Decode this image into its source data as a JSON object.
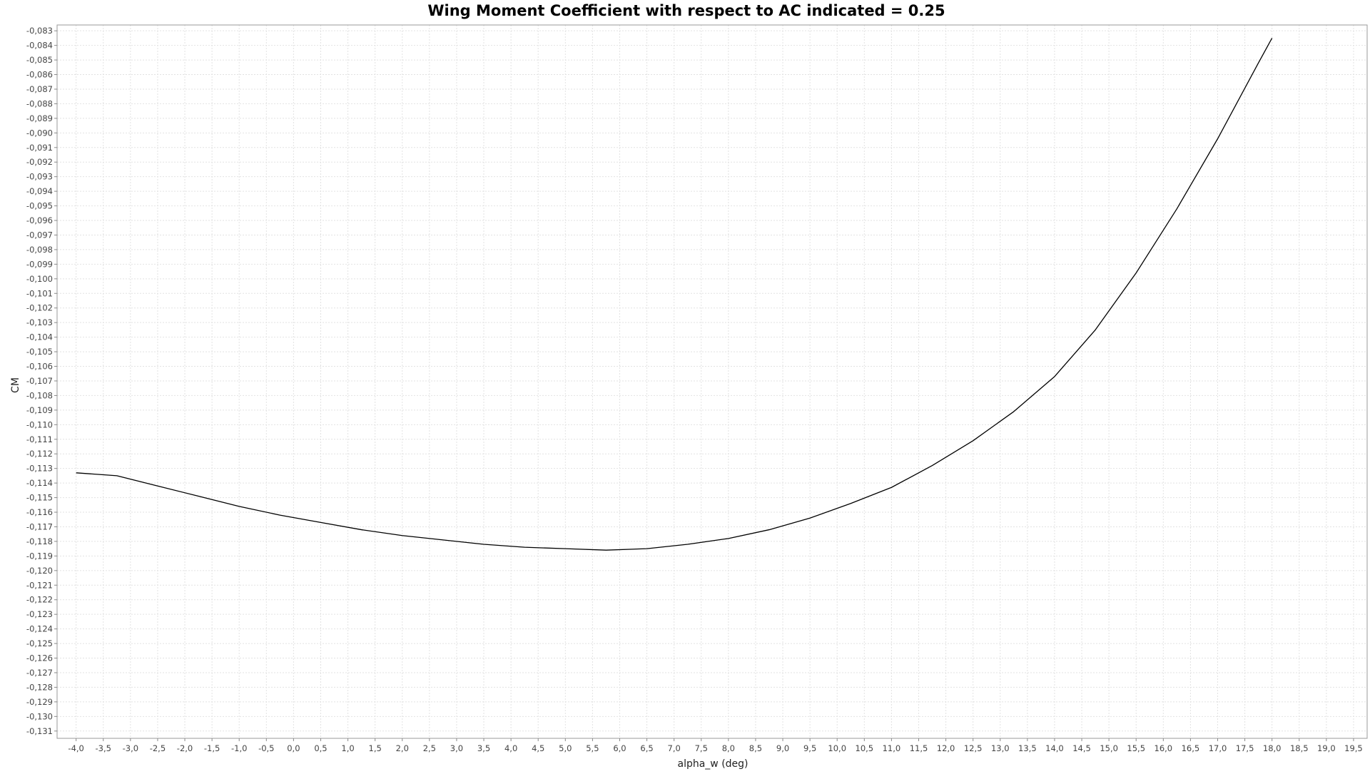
{
  "chart_data": {
    "type": "line",
    "title": "Wing Moment Coefficient with respect to AC indicated = 0.25",
    "xlabel": "alpha_w (deg)",
    "ylabel": "CM",
    "xlim": [
      -4.35,
      19.75
    ],
    "ylim": [
      -0.1315,
      -0.0826
    ],
    "x_ticks": [
      "-4,0",
      "-3,5",
      "-3,0",
      "-2,5",
      "-2,0",
      "-1,5",
      "-1,0",
      "-0,5",
      "0,0",
      "0,5",
      "1,0",
      "1,5",
      "2,0",
      "2,5",
      "3,0",
      "3,5",
      "4,0",
      "4,5",
      "5,0",
      "5,5",
      "6,0",
      "6,5",
      "7,0",
      "7,5",
      "8,0",
      "8,5",
      "9,0",
      "9,5",
      "10,0",
      "10,5",
      "11,0",
      "11,5",
      "12,0",
      "12,5",
      "13,0",
      "13,5",
      "14,0",
      "14,5",
      "15,0",
      "15,5",
      "16,0",
      "16,5",
      "17,0",
      "17,5",
      "18,0",
      "18,5",
      "19,0",
      "19,5"
    ],
    "y_ticks": [
      "-0,083",
      "-0,084",
      "-0,085",
      "-0,086",
      "-0,087",
      "-0,088",
      "-0,089",
      "-0,090",
      "-0,091",
      "-0,092",
      "-0,093",
      "-0,094",
      "-0,095",
      "-0,096",
      "-0,097",
      "-0,098",
      "-0,099",
      "-0,100",
      "-0,101",
      "-0,102",
      "-0,103",
      "-0,104",
      "-0,105",
      "-0,106",
      "-0,107",
      "-0,108",
      "-0,109",
      "-0,110",
      "-0,111",
      "-0,112",
      "-0,113",
      "-0,114",
      "-0,115",
      "-0,116",
      "-0,117",
      "-0,118",
      "-0,119",
      "-0,120",
      "-0,121",
      "-0,122",
      "-0,123",
      "-0,124",
      "-0,125",
      "-0,126",
      "-0,127",
      "-0,128",
      "-0,129",
      "-0,130",
      "-0,131"
    ],
    "grid": true,
    "series": [
      {
        "color": "#000000",
        "x": [
          -4.0,
          -3.25,
          -2.5,
          -1.75,
          -1.0,
          -0.25,
          0.5,
          1.25,
          2.0,
          2.75,
          3.5,
          4.25,
          5.0,
          5.75,
          6.5,
          7.25,
          8.0,
          8.75,
          9.5,
          10.25,
          11.0,
          11.75,
          12.5,
          13.25,
          14.0,
          14.75,
          15.5,
          16.25,
          17.0,
          17.75,
          18.0
        ],
        "y": [
          -0.1133,
          -0.1135,
          -0.1142,
          -0.1149,
          -0.1156,
          -0.1162,
          -0.1167,
          -0.1172,
          -0.1176,
          -0.1179,
          -0.1182,
          -0.1184,
          -0.1185,
          -0.1186,
          -0.1185,
          -0.1182,
          -0.1178,
          -0.1172,
          -0.1164,
          -0.1154,
          -0.1143,
          -0.1128,
          -0.1111,
          -0.1091,
          -0.1067,
          -0.1035,
          -0.0996,
          -0.0952,
          -0.0904,
          -0.0852,
          -0.0835
        ]
      }
    ]
  }
}
